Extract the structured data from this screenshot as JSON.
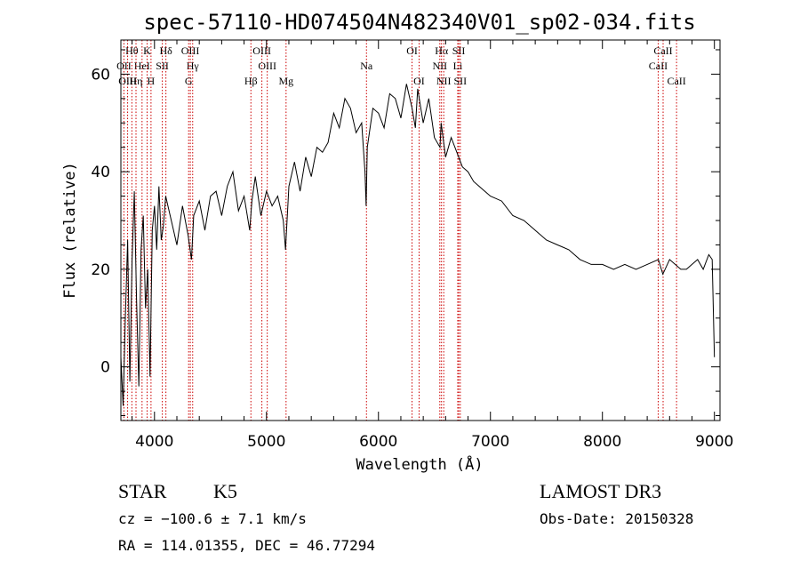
{
  "chart_data": {
    "type": "line",
    "title": "spec-57110-HD074504N482340V01_sp02-034.fits",
    "xlabel": "Wavelength (Å)",
    "ylabel": "Flux (relative)",
    "xlim": [
      3700,
      9050
    ],
    "ylim": [
      -11,
      67
    ],
    "x_ticks": [
      4000,
      5000,
      6000,
      7000,
      8000,
      9000
    ],
    "y_ticks": [
      0,
      20,
      40,
      60
    ],
    "grid": false,
    "series": [
      {
        "values_note": "",
        "x": [
          3700,
          3720,
          3740,
          3760,
          3780,
          3800,
          3820,
          3840,
          3860,
          3880,
          3900,
          3920,
          3940,
          3960,
          3980,
          4000,
          4020,
          4040,
          4060,
          4080,
          4100,
          4150,
          4200,
          4250,
          4300,
          4330,
          4350,
          4400,
          4450,
          4500,
          4550,
          4600,
          4650,
          4700,
          4750,
          4800,
          4850,
          4870,
          4900,
          4950,
          5000,
          5050,
          5100,
          5150,
          5170,
          5200,
          5250,
          5300,
          5350,
          5400,
          5450,
          5500,
          5550,
          5600,
          5650,
          5700,
          5750,
          5800,
          5850,
          5880,
          5890,
          5900,
          5950,
          6000,
          6050,
          6100,
          6150,
          6200,
          6250,
          6300,
          6330,
          6350,
          6400,
          6450,
          6500,
          6550,
          6560,
          6600,
          6650,
          6700,
          6750,
          6800,
          6850,
          6900,
          6950,
          7000,
          7100,
          7200,
          7300,
          7400,
          7500,
          7600,
          7700,
          7800,
          7900,
          8000,
          8100,
          8200,
          8300,
          8400,
          8500,
          8540,
          8600,
          8650,
          8700,
          8750,
          8800,
          8850,
          8900,
          8950,
          8980,
          9000
        ],
        "y": [
          2,
          -8,
          10,
          26,
          -3,
          22,
          36,
          14,
          -4,
          24,
          31,
          12,
          20,
          -2,
          28,
          33,
          24,
          37,
          26,
          29,
          35,
          30,
          25,
          33,
          27,
          22,
          31,
          34,
          28,
          35,
          36,
          31,
          37,
          40,
          32,
          35,
          28,
          34,
          39,
          31,
          36,
          33,
          35,
          30,
          24,
          37,
          42,
          36,
          43,
          39,
          45,
          44,
          46,
          52,
          49,
          55,
          53,
          48,
          50,
          40,
          33,
          45,
          53,
          52,
          49,
          56,
          55,
          51,
          58,
          53,
          49,
          57,
          50,
          55,
          47,
          45,
          50,
          43,
          47,
          44,
          41,
          40,
          38,
          37,
          36,
          35,
          34,
          31,
          30,
          28,
          26,
          25,
          24,
          22,
          21,
          21,
          20,
          21,
          20,
          21,
          22,
          19,
          22,
          21,
          20,
          20,
          21,
          22,
          20,
          23,
          22,
          2
        ]
      }
    ],
    "spectral_lines": [
      {
        "label": "Hθ",
        "x": 3798,
        "row": 1
      },
      {
        "label": "OII",
        "x": 3727,
        "row": 2
      },
      {
        "label": "HeI",
        "x": 3889,
        "row": 2
      },
      {
        "label": "OIII",
        "x": 3760,
        "row": 3
      },
      {
        "label": "Hη",
        "x": 3835,
        "row": 3
      },
      {
        "label": "K",
        "x": 3934,
        "row": 1
      },
      {
        "label": "H",
        "x": 3969,
        "row": 3
      },
      {
        "label": "SII",
        "x": 4070,
        "row": 2
      },
      {
        "label": "Hδ",
        "x": 4102,
        "row": 1
      },
      {
        "label": "OIII",
        "x": 4320,
        "row": 1
      },
      {
        "label": "Hγ",
        "x": 4341,
        "row": 2
      },
      {
        "label": "G",
        "x": 4305,
        "row": 3
      },
      {
        "label": "OIII",
        "x": 4959,
        "row": 1
      },
      {
        "label": "OIII",
        "x": 5007,
        "row": 2
      },
      {
        "label": "Hβ",
        "x": 4861,
        "row": 3
      },
      {
        "label": "Mg",
        "x": 5175,
        "row": 3
      },
      {
        "label": "Na",
        "x": 5893,
        "row": 2
      },
      {
        "label": "OI",
        "x": 6300,
        "row": 1
      },
      {
        "label": "OI",
        "x": 6363,
        "row": 3
      },
      {
        "label": "Hα",
        "x": 6563,
        "row": 1
      },
      {
        "label": "SII",
        "x": 6717,
        "row": 1
      },
      {
        "label": "NII",
        "x": 6548,
        "row": 2
      },
      {
        "label": "Li",
        "x": 6708,
        "row": 2
      },
      {
        "label": "NII",
        "x": 6583,
        "row": 3
      },
      {
        "label": "SII",
        "x": 6731,
        "row": 3
      },
      {
        "label": "CaII",
        "x": 8542,
        "row": 1
      },
      {
        "label": "CaII",
        "x": 8498,
        "row": 2
      },
      {
        "label": "CaII",
        "x": 8662,
        "row": 3
      }
    ],
    "line_marker_color": "#cc0000"
  },
  "info": {
    "object_class": "STAR",
    "subclass": "K5",
    "survey": "LAMOST DR3",
    "redshift": "cz = −100.6 ± 7.1 km/s",
    "obs_date": "Obs-Date: 20150328",
    "coords": "RA = 114.01355, DEC =  46.77294"
  }
}
